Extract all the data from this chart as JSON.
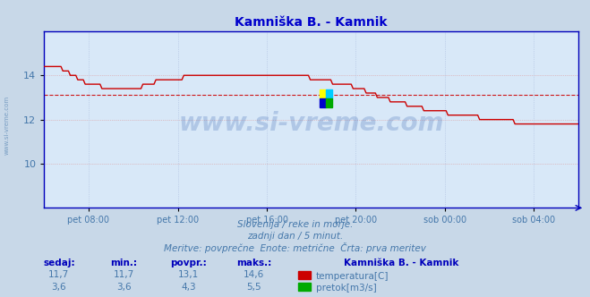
{
  "title": "Kamniška B. - Kamnik",
  "title_color": "#0000cc",
  "bg_color": "#d8e8f8",
  "plot_bg_color": "#d8e8f8",
  "outer_bg_color": "#c8d8e8",
  "watermark": "www.si-vreme.com",
  "subtitle1": "Slovenija / reke in morje.",
  "subtitle2": "zadnji dan / 5 minut.",
  "subtitle3": "Meritve: povprečne  Enote: metrične  Črta: prva meritev",
  "text_color": "#4477aa",
  "temp_color": "#cc0000",
  "flow_color": "#00aa00",
  "axis_line_color": "#0000bb",
  "grid_color": "#aabbcc",
  "ylim": [
    8.0,
    16.0
  ],
  "yticks": [
    10,
    12,
    14
  ],
  "temp_avg": 13.1,
  "flow_avg": 4.3,
  "temp_max": 14.6,
  "flow_max": 5.5,
  "temp_min": 11.7,
  "flow_min": 3.6,
  "temp_now": 11.7,
  "flow_now": 3.6,
  "xtick_labels": [
    "pet 08:00",
    "pet 12:00",
    "pet 16:00",
    "pet 20:00",
    "sob 00:00",
    "sob 04:00"
  ],
  "legend_label1": "temperatura[C]",
  "legend_label2": "pretok[m3/s]",
  "station_name": "Kamniška B. - Kamnik",
  "table_headers": [
    "sedaj:",
    "min.:",
    "povpr.:",
    "maks.:"
  ],
  "table_row1": [
    "11,7",
    "11,7",
    "13,1",
    "14,6"
  ],
  "table_row2": [
    "3,6",
    "3,6",
    "4,3",
    "5,5"
  ]
}
